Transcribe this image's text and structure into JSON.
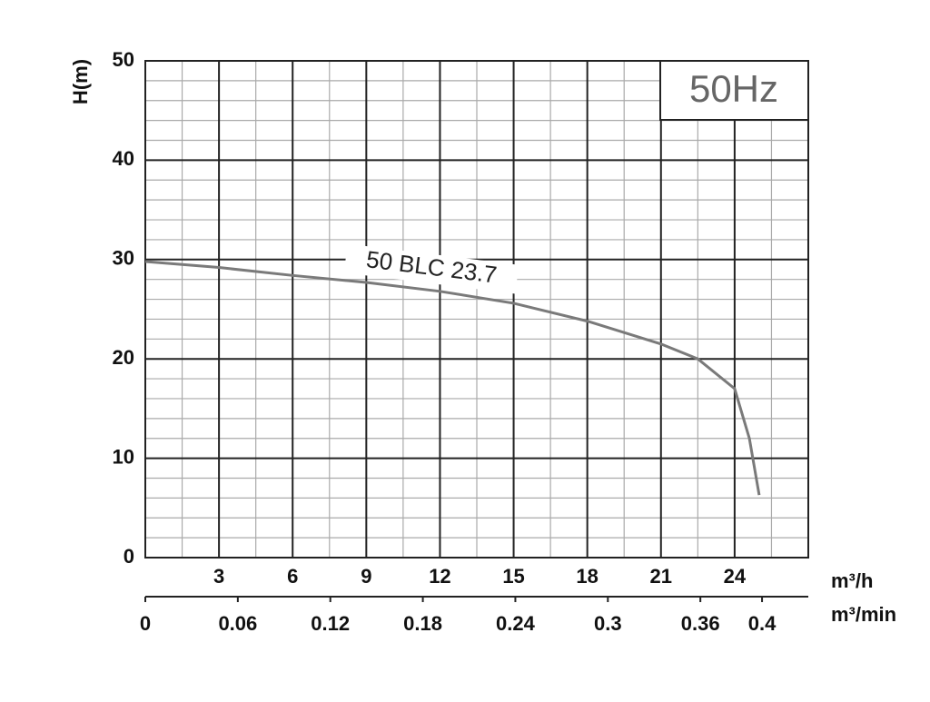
{
  "chart_data": {
    "type": "line",
    "y_label": "H(m)",
    "x_label": "m³/h",
    "x2_label": "m³/min",
    "annotation": "50Hz",
    "xlim": [
      0,
      27
    ],
    "xticks": [
      3,
      6,
      9,
      12,
      15,
      18,
      21,
      24
    ],
    "x_minor_ticks": [
      1.5,
      4.5,
      7.5,
      10.5,
      13.5,
      16.5,
      19.5,
      22.5,
      25.5
    ],
    "x2lim": [
      0,
      0.43
    ],
    "x2ticks": [
      0,
      0.06,
      0.12,
      0.18,
      0.24,
      0.3,
      0.36,
      0.4
    ],
    "ylim": [
      0,
      50
    ],
    "yticks": [
      0,
      10,
      20,
      30,
      40,
      50
    ],
    "y_minor_ticks": [
      2,
      4,
      6,
      8,
      12,
      14,
      16,
      18,
      22,
      24,
      26,
      28,
      32,
      34,
      36,
      38,
      42,
      44,
      46,
      48
    ],
    "grid": true,
    "x": [
      0,
      3,
      6,
      9,
      12,
      15,
      18,
      21,
      22.5,
      24,
      24.6,
      25
    ],
    "series": [
      {
        "name": "50 BLC 23.7",
        "color": "#7a7a7a",
        "values": [
          29.8,
          29.2,
          28.4,
          27.7,
          26.8,
          25.6,
          23.8,
          21.5,
          20,
          17,
          12,
          6.3
        ]
      }
    ]
  }
}
